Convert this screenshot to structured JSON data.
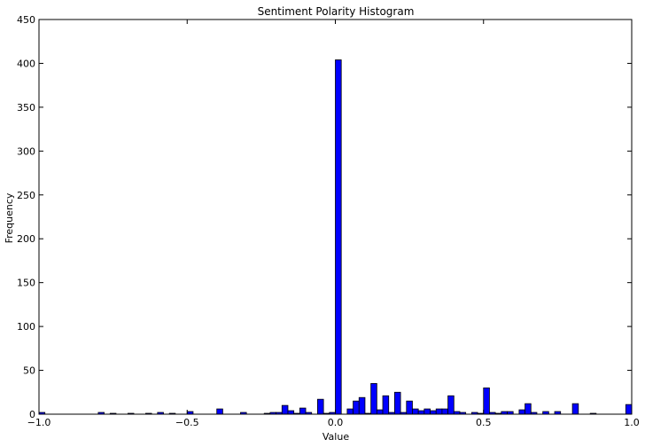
{
  "chart_data": {
    "type": "bar",
    "title": "Sentiment Polarity Histogram",
    "xlabel": "Value",
    "ylabel": "Frequency",
    "xlim": [
      -1.0,
      1.0
    ],
    "ylim": [
      0,
      450
    ],
    "xticks": [
      -1.0,
      -0.5,
      0.0,
      0.5,
      1.0
    ],
    "xtick_labels": [
      "−1.0",
      "−0.5",
      "0.0",
      "0.5",
      "1.0"
    ],
    "yticks": [
      0,
      50,
      100,
      150,
      200,
      250,
      300,
      350,
      400,
      450
    ],
    "ytick_labels": [
      "0",
      "50",
      "100",
      "150",
      "200",
      "250",
      "300",
      "350",
      "400",
      "450"
    ],
    "bin_width": 0.02,
    "bar_color": "#0000ff",
    "edge_color": "#000000",
    "bins": [
      {
        "x": -1.0,
        "count": 2
      },
      {
        "x": -0.8,
        "count": 2
      },
      {
        "x": -0.76,
        "count": 1
      },
      {
        "x": -0.7,
        "count": 1
      },
      {
        "x": -0.64,
        "count": 1
      },
      {
        "x": -0.6,
        "count": 2
      },
      {
        "x": -0.56,
        "count": 1
      },
      {
        "x": -0.5,
        "count": 3
      },
      {
        "x": -0.4,
        "count": 6
      },
      {
        "x": -0.32,
        "count": 2
      },
      {
        "x": -0.24,
        "count": 1
      },
      {
        "x": -0.22,
        "count": 2
      },
      {
        "x": -0.2,
        "count": 2
      },
      {
        "x": -0.18,
        "count": 10
      },
      {
        "x": -0.16,
        "count": 4
      },
      {
        "x": -0.14,
        "count": 1
      },
      {
        "x": -0.12,
        "count": 7
      },
      {
        "x": -0.1,
        "count": 2
      },
      {
        "x": -0.06,
        "count": 17
      },
      {
        "x": -0.04,
        "count": 1
      },
      {
        "x": -0.02,
        "count": 2
      },
      {
        "x": 0.0,
        "count": 404
      },
      {
        "x": 0.04,
        "count": 6
      },
      {
        "x": 0.06,
        "count": 15
      },
      {
        "x": 0.08,
        "count": 19
      },
      {
        "x": 0.1,
        "count": 1
      },
      {
        "x": 0.12,
        "count": 35
      },
      {
        "x": 0.14,
        "count": 5
      },
      {
        "x": 0.16,
        "count": 21
      },
      {
        "x": 0.18,
        "count": 2
      },
      {
        "x": 0.2,
        "count": 25
      },
      {
        "x": 0.22,
        "count": 2
      },
      {
        "x": 0.24,
        "count": 15
      },
      {
        "x": 0.26,
        "count": 6
      },
      {
        "x": 0.28,
        "count": 4
      },
      {
        "x": 0.3,
        "count": 6
      },
      {
        "x": 0.32,
        "count": 4
      },
      {
        "x": 0.34,
        "count": 6
      },
      {
        "x": 0.36,
        "count": 6
      },
      {
        "x": 0.38,
        "count": 21
      },
      {
        "x": 0.4,
        "count": 3
      },
      {
        "x": 0.42,
        "count": 2
      },
      {
        "x": 0.46,
        "count": 2
      },
      {
        "x": 0.48,
        "count": 1
      },
      {
        "x": 0.5,
        "count": 30
      },
      {
        "x": 0.52,
        "count": 2
      },
      {
        "x": 0.54,
        "count": 1
      },
      {
        "x": 0.56,
        "count": 3
      },
      {
        "x": 0.58,
        "count": 3
      },
      {
        "x": 0.62,
        "count": 5
      },
      {
        "x": 0.64,
        "count": 12
      },
      {
        "x": 0.66,
        "count": 2
      },
      {
        "x": 0.7,
        "count": 3
      },
      {
        "x": 0.74,
        "count": 3
      },
      {
        "x": 0.8,
        "count": 12
      },
      {
        "x": 0.86,
        "count": 1
      },
      {
        "x": 0.98,
        "count": 11
      }
    ]
  }
}
